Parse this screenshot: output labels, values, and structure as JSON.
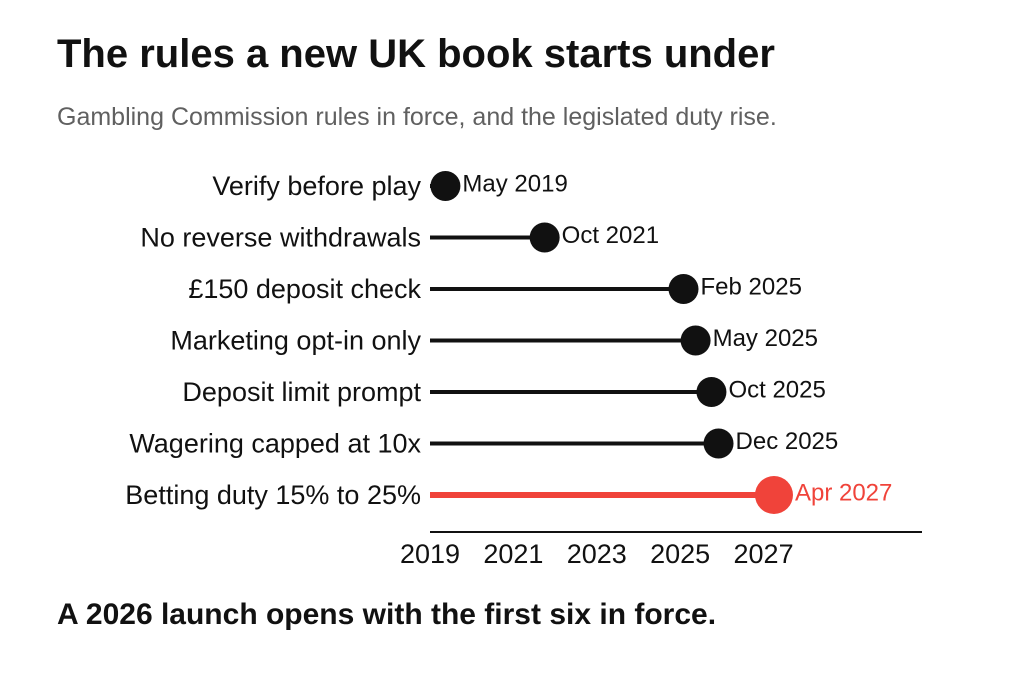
{
  "title": "The rules a new UK book starts under",
  "subtitle": "Gambling Commission rules in force, and the legislated duty rise.",
  "footer": "A 2026 launch opens with the first six in force.",
  "colors": {
    "default": "#111111",
    "highlight": "#f0433a",
    "text": "#111111",
    "subtitle": "#606060"
  },
  "chart_data": {
    "type": "lollipop",
    "x_axis": {
      "min": 2019,
      "max": 2030.8,
      "ticks": [
        2019,
        2021,
        2023,
        2025,
        2027
      ],
      "scale": "time (years)"
    },
    "grid": false,
    "items": [
      {
        "label": "Verify before play",
        "date": "2019-05",
        "date_label": "May 2019",
        "value": 2019.37,
        "highlight": false
      },
      {
        "label": "No reverse withdrawals",
        "date": "2021-10",
        "date_label": "Oct 2021",
        "value": 2021.75,
        "highlight": false
      },
      {
        "label": "£150 deposit check",
        "date": "2025-02",
        "date_label": "Feb 2025",
        "value": 2025.08,
        "highlight": false
      },
      {
        "label": "Marketing opt-in only",
        "date": "2025-05",
        "date_label": "May 2025",
        "value": 2025.37,
        "highlight": false
      },
      {
        "label": "Deposit limit prompt",
        "date": "2025-10",
        "date_label": "Oct 2025",
        "value": 2025.75,
        "highlight": false
      },
      {
        "label": "Wagering capped at 10x",
        "date": "2025-12",
        "date_label": "Dec 2025",
        "value": 2025.92,
        "highlight": false
      },
      {
        "label": "Betting duty 15% to 25%",
        "date": "2027-04",
        "date_label": "Apr 2027",
        "value": 2027.25,
        "highlight": true
      }
    ]
  }
}
